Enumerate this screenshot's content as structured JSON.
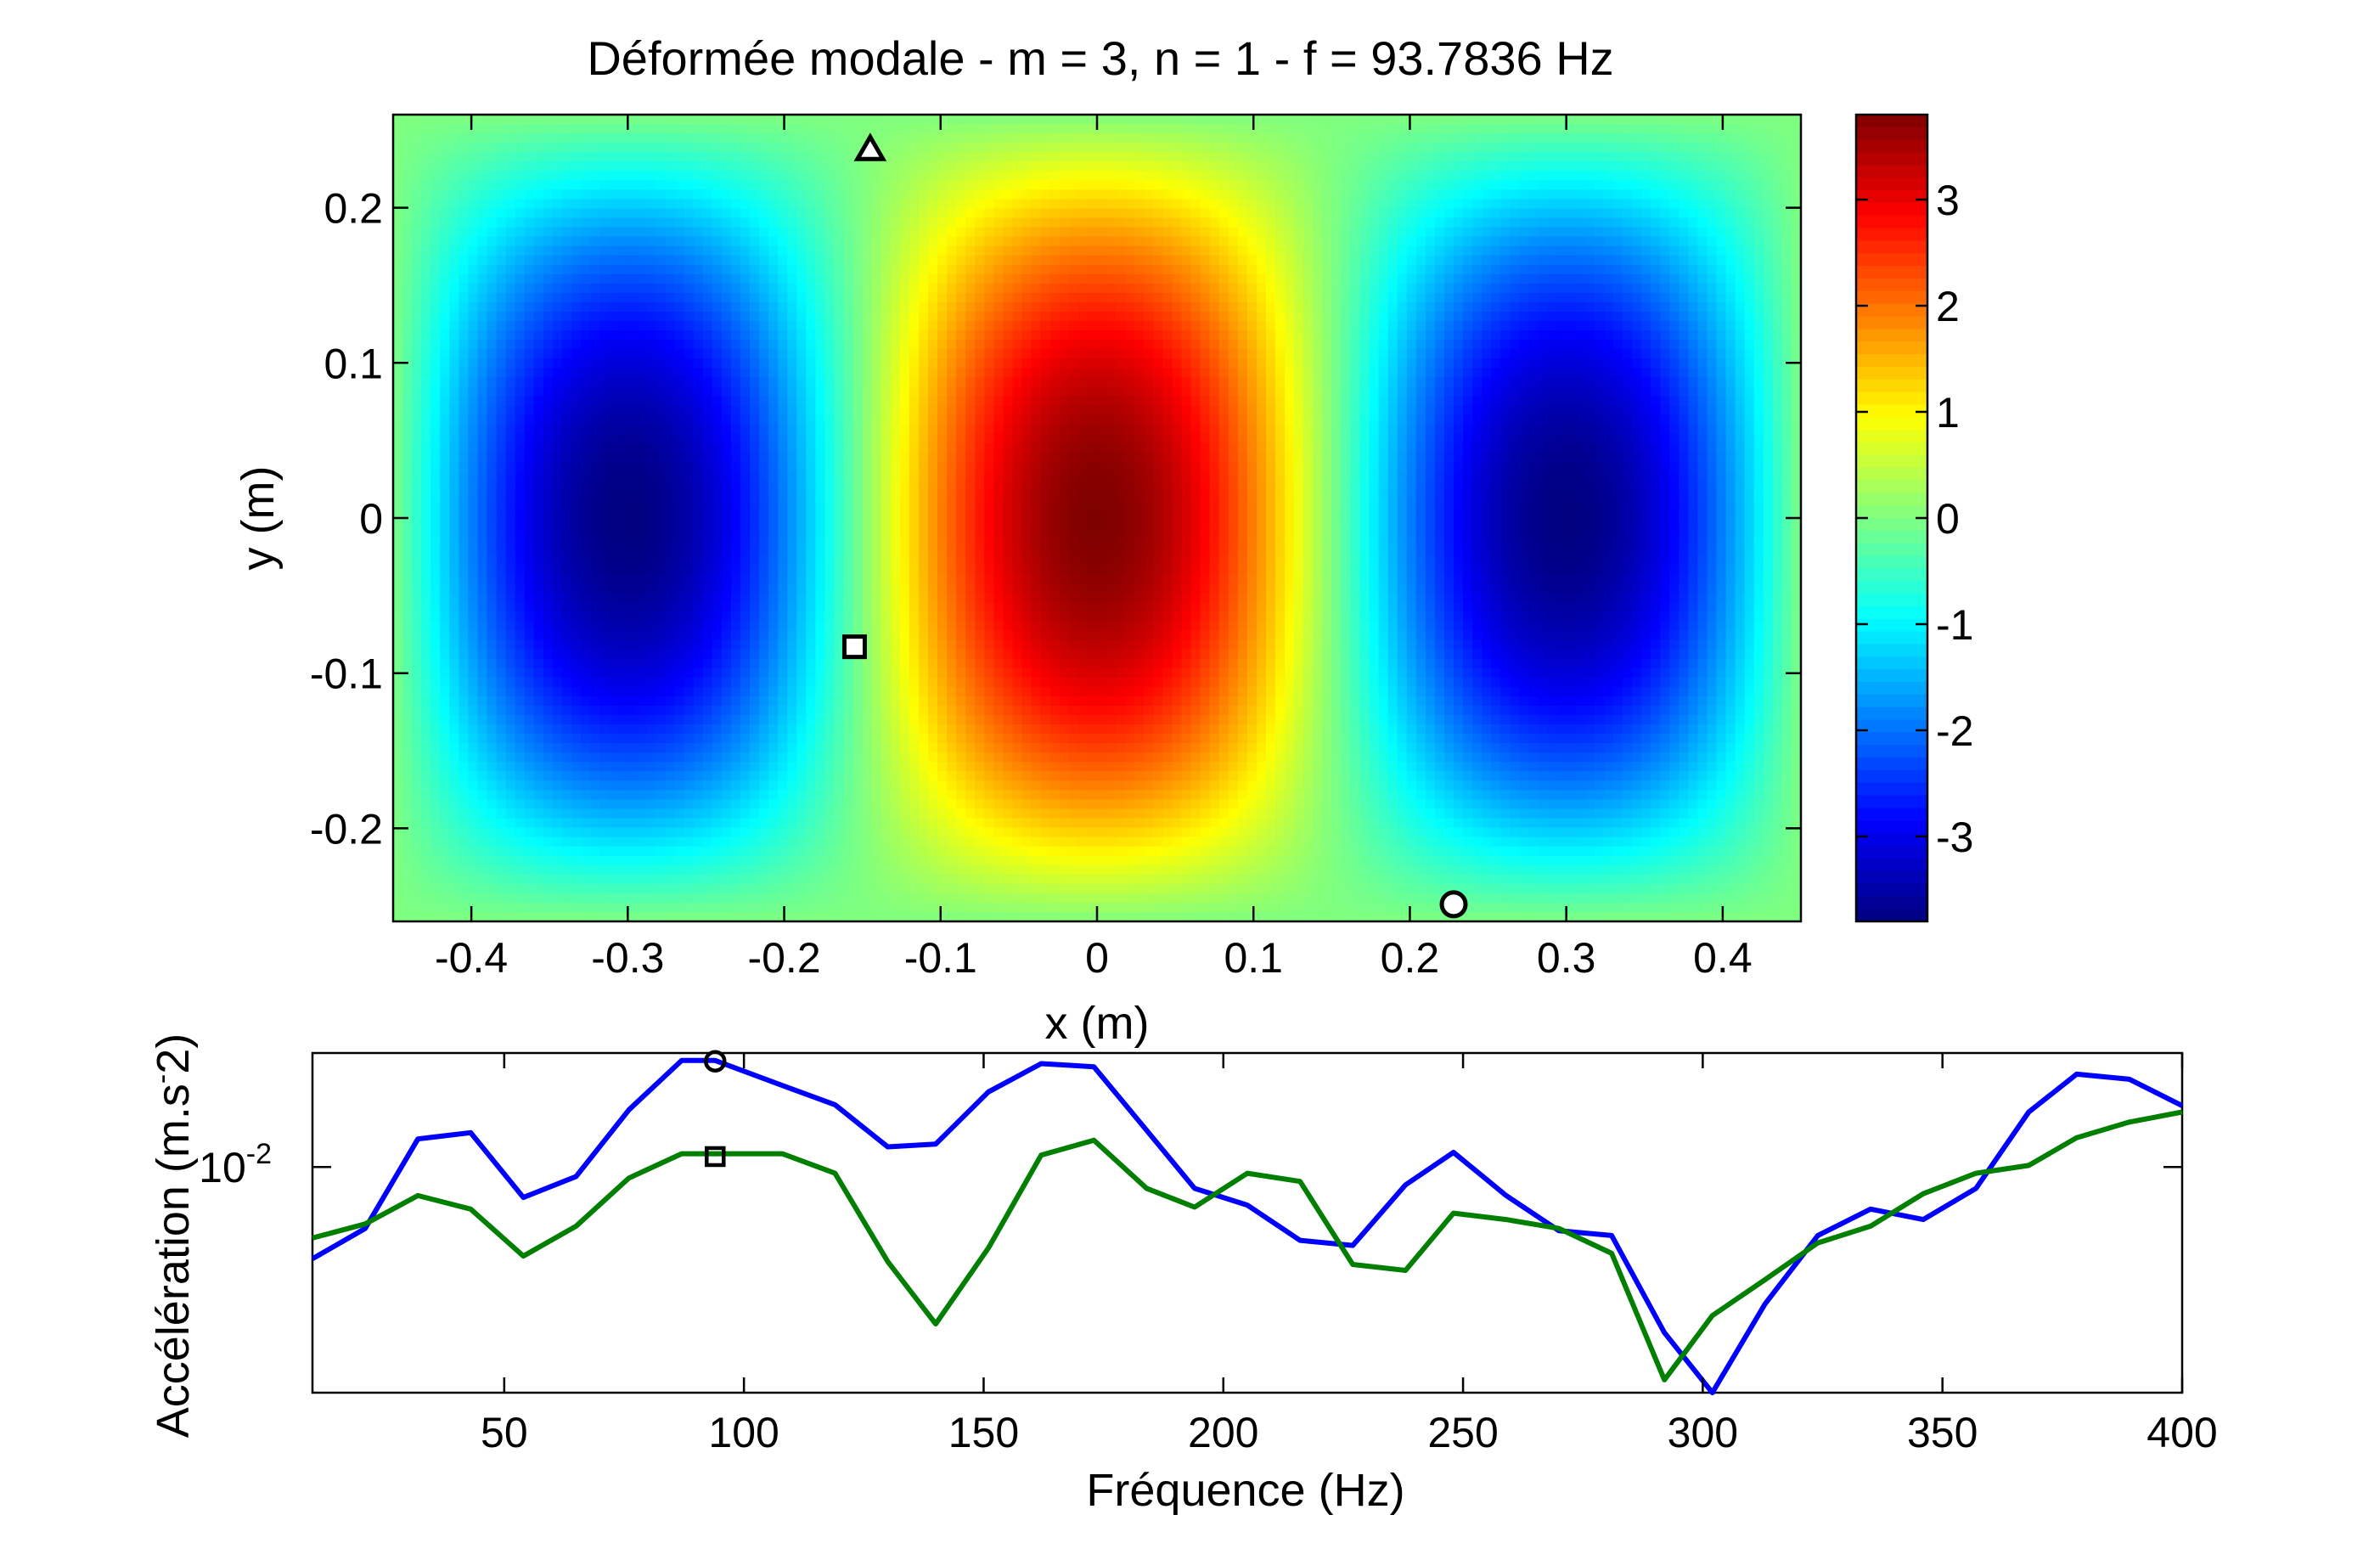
{
  "chart_data": [
    {
      "type": "heatmap",
      "title": "Déformée modale - m = 3, n = 1 - f = 93.7836 Hz",
      "xlabel": "x (m)",
      "ylabel": "y (m)",
      "xlim": [
        -0.45,
        0.45
      ],
      "ylim": [
        -0.26,
        0.26
      ],
      "xticks": [
        -0.4,
        -0.3,
        -0.2,
        -0.1,
        0,
        0.1,
        0.2,
        0.3,
        0.4
      ],
      "xtick_labels": [
        "-0.4",
        "-0.3",
        "-0.2",
        "-0.1",
        "0",
        "0.1",
        "0.2",
        "0.3",
        "0.4"
      ],
      "yticks": [
        0.2,
        0.1,
        0,
        -0.1,
        -0.2
      ],
      "ytick_labels": [
        "0.2",
        "0.1",
        "0",
        "-0.1",
        "-0.2"
      ],
      "field": {
        "description_formula": "amp * sin(3*pi*(x+0.45)/0.9) * sin(pi*(y+0.26)/0.52) with sign inverted",
        "amplitude": 3.8,
        "mode_m": 3,
        "mode_n": 1
      },
      "colorbar": {
        "limits": [
          -3.8,
          3.8
        ],
        "ticks": [
          3,
          2,
          1,
          0,
          -1,
          -2,
          -3
        ],
        "tick_labels": [
          "3",
          "2",
          "1",
          "0",
          "-1",
          "-2",
          "-3"
        ],
        "colormap": "jet"
      },
      "markers": [
        {
          "shape": "triangle",
          "x": -0.145,
          "y": 0.238
        },
        {
          "shape": "square",
          "x": -0.155,
          "y": -0.083
        },
        {
          "shape": "circle",
          "x": 0.228,
          "y": -0.249
        }
      ],
      "grid": false
    },
    {
      "type": "line",
      "title": "",
      "xlabel": "Fréquence (Hz)",
      "ylabel": "Accélération (m.s",
      "ylabel_sup": "-",
      "ylabel_suffix": "2)",
      "xlim": [
        10,
        400
      ],
      "ylim_log": [
        0.0023,
        0.021
      ],
      "yscale": "log",
      "xticks": [
        50,
        100,
        150,
        200,
        250,
        300,
        350,
        400
      ],
      "xtick_labels": [
        "50",
        "100",
        "150",
        "200",
        "250",
        "300",
        "350",
        "400"
      ],
      "ytick_base": "10",
      "ytick_exp": "-2",
      "ytick_value": 0.01,
      "x": [
        10,
        21,
        32,
        43,
        54,
        65,
        76,
        87,
        94,
        108,
        119,
        130,
        140,
        151,
        162,
        173,
        184,
        194,
        205,
        216,
        227,
        238,
        248,
        259,
        270,
        281,
        292,
        302,
        313,
        324,
        335,
        346,
        357,
        368,
        378,
        389,
        400
      ],
      "series": [
        {
          "color": "#0000ff",
          "values": [
            0.0055,
            0.0067,
            0.012,
            0.0125,
            0.0082,
            0.0094,
            0.0145,
            0.02,
            0.02,
            0.017,
            0.015,
            0.0114,
            0.0116,
            0.0163,
            0.0196,
            0.0192,
            0.0127,
            0.0087,
            0.0078,
            0.0062,
            0.006,
            0.0089,
            0.011,
            0.0083,
            0.0066,
            0.0064,
            0.0034,
            0.0023,
            0.0041,
            0.0064,
            0.0076,
            0.0071,
            0.0087,
            0.0143,
            0.0183,
            0.0177,
            0.0149
          ]
        },
        {
          "color": "#007f00",
          "values": [
            0.0063,
            0.0069,
            0.0083,
            0.0076,
            0.0056,
            0.0068,
            0.0093,
            0.0109,
            0.0109,
            0.0109,
            0.0096,
            0.0054,
            0.0036,
            0.0059,
            0.0108,
            0.0119,
            0.0087,
            0.0077,
            0.0096,
            0.0091,
            0.0053,
            0.0051,
            0.0074,
            0.0071,
            0.0067,
            0.0057,
            0.0025,
            0.0038,
            0.0048,
            0.0061,
            0.0068,
            0.0084,
            0.0096,
            0.0101,
            0.0121,
            0.0134,
            0.0143
          ]
        }
      ],
      "markers": [
        {
          "shape": "circle",
          "x": 94,
          "y": 0.0199
        },
        {
          "shape": "square",
          "x": 94,
          "y": 0.0107
        }
      ],
      "grid": false
    }
  ]
}
